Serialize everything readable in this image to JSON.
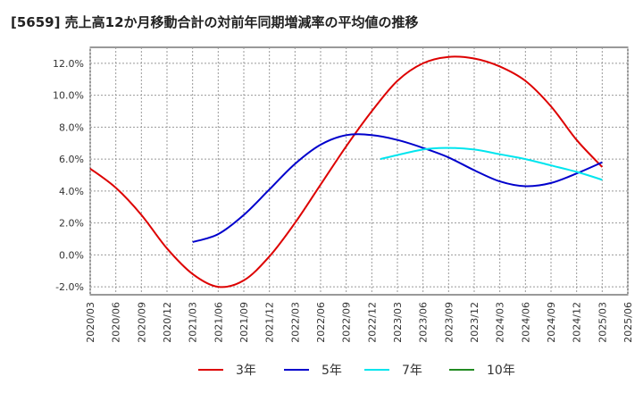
{
  "title": "[5659]  売上高12か月移動合計の対前年同期増減率の平均値の推移",
  "chart_data": {
    "type": "line",
    "title": "[5659]  売上高12か月移動合計の対前年同期増減率の平均値の推移",
    "xlabel": "",
    "ylabel": "",
    "ylim": [
      -2.5,
      13.0
    ],
    "y_ticks": [
      -2.0,
      0.0,
      2.0,
      4.0,
      6.0,
      8.0,
      10.0,
      12.0
    ],
    "y_tick_labels": [
      "-2.0%",
      "0.0%",
      "2.0%",
      "4.0%",
      "6.0%",
      "8.0%",
      "10.0%",
      "12.0%"
    ],
    "x_ticks": [
      "2020/03",
      "2020/06",
      "2020/09",
      "2020/12",
      "2021/03",
      "2021/06",
      "2021/09",
      "2021/12",
      "2022/03",
      "2022/06",
      "2022/09",
      "2022/12",
      "2023/03",
      "2023/06",
      "2023/09",
      "2023/12",
      "2024/03",
      "2024/06",
      "2024/09",
      "2024/12",
      "2025/03",
      "2025/06"
    ],
    "grid": true,
    "legend_position": "bottom",
    "series": [
      {
        "name": "3年",
        "color": "#dd0000",
        "x": [
          "2020/03",
          "2020/06",
          "2020/09",
          "2020/12",
          "2021/03",
          "2021/06",
          "2021/09",
          "2021/12",
          "2022/03",
          "2022/06",
          "2022/09",
          "2022/12",
          "2023/03",
          "2023/06",
          "2023/09",
          "2023/12",
          "2024/03",
          "2024/06",
          "2024/09",
          "2024/12",
          "2025/03"
        ],
        "values": [
          5.4,
          4.2,
          2.5,
          0.4,
          -1.2,
          -2.0,
          -1.6,
          -0.1,
          2.0,
          4.4,
          6.8,
          9.0,
          10.9,
          12.0,
          12.4,
          12.3,
          11.8,
          10.9,
          9.3,
          7.2,
          5.5
        ]
      },
      {
        "name": "5年",
        "color": "#0000cc",
        "x": [
          "2021/03",
          "2021/06",
          "2021/09",
          "2021/12",
          "2022/03",
          "2022/06",
          "2022/09",
          "2022/12",
          "2023/03",
          "2023/06",
          "2023/09",
          "2023/12",
          "2024/03",
          "2024/06",
          "2024/09",
          "2024/12",
          "2025/03"
        ],
        "values": [
          0.8,
          1.3,
          2.5,
          4.1,
          5.7,
          6.9,
          7.5,
          7.5,
          7.2,
          6.7,
          6.1,
          5.3,
          4.6,
          4.3,
          4.5,
          5.1,
          5.8
        ]
      },
      {
        "name": "7年",
        "color": "#00e5ee",
        "x": [
          "2023/01",
          "2023/06",
          "2023/09",
          "2023/12",
          "2024/03",
          "2024/06",
          "2024/09",
          "2024/12",
          "2025/03"
        ],
        "values": [
          6.0,
          6.6,
          6.7,
          6.6,
          6.3,
          6.0,
          5.6,
          5.2,
          4.7
        ]
      },
      {
        "name": "10年",
        "color": "#228b22",
        "x": [],
        "values": []
      }
    ]
  }
}
